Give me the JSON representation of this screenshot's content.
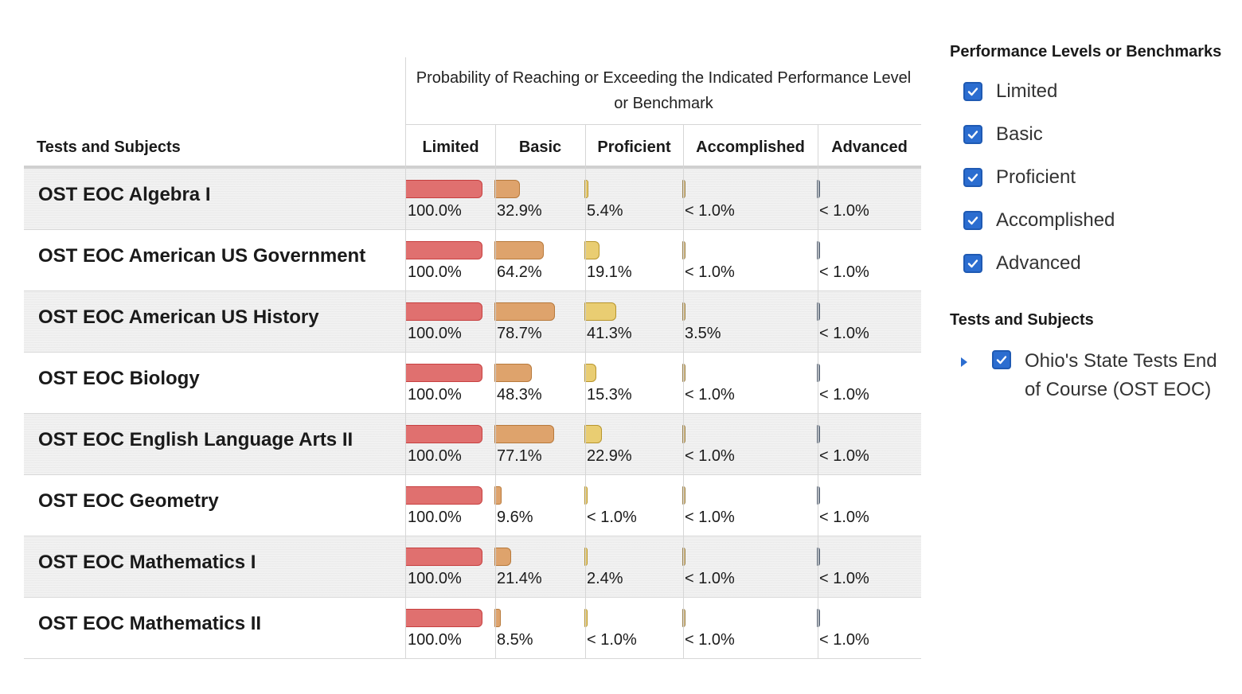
{
  "header": {
    "subjects_label": "Tests and Subjects",
    "probability_label": "Probability of Reaching or Exceeding the Indicated Performance Level or Benchmark",
    "columns": [
      "Limited",
      "Basic",
      "Proficient",
      "Accomplished",
      "Advanced"
    ]
  },
  "level_colors": {
    "fill": [
      "#e0706f",
      "#dea36c",
      "#e9cd72",
      "#d9c08a",
      "#8f99a6"
    ],
    "stroke": [
      "#c74040",
      "#b87a3c",
      "#b8962e",
      "#9c8451",
      "#5a6676"
    ]
  },
  "rows": [
    {
      "subject": "OST EOC Algebra I",
      "labels": [
        "100.0%",
        "32.9%",
        "5.4%",
        "< 1.0%",
        "< 1.0%"
      ],
      "values": [
        100,
        32.9,
        5.4,
        0.5,
        0.5
      ]
    },
    {
      "subject": "OST EOC American US Government",
      "labels": [
        "100.0%",
        "64.2%",
        "19.1%",
        "< 1.0%",
        "< 1.0%"
      ],
      "values": [
        100,
        64.2,
        19.1,
        0.5,
        0.5
      ]
    },
    {
      "subject": "OST EOC American US History",
      "labels": [
        "100.0%",
        "78.7%",
        "41.3%",
        "3.5%",
        "< 1.0%"
      ],
      "values": [
        100,
        78.7,
        41.3,
        3.5,
        0.5
      ]
    },
    {
      "subject": "OST EOC Biology",
      "labels": [
        "100.0%",
        "48.3%",
        "15.3%",
        "< 1.0%",
        "< 1.0%"
      ],
      "values": [
        100,
        48.3,
        15.3,
        0.5,
        0.5
      ]
    },
    {
      "subject": "OST EOC English Language Arts II",
      "labels": [
        "100.0%",
        "77.1%",
        "22.9%",
        "< 1.0%",
        "< 1.0%"
      ],
      "values": [
        100,
        77.1,
        22.9,
        0.5,
        0.5
      ]
    },
    {
      "subject": "OST EOC Geometry",
      "labels": [
        "100.0%",
        "9.6%",
        "< 1.0%",
        "< 1.0%",
        "< 1.0%"
      ],
      "values": [
        100,
        9.6,
        0.5,
        0.5,
        0.5
      ]
    },
    {
      "subject": "OST EOC Mathematics I",
      "labels": [
        "100.0%",
        "21.4%",
        "2.4%",
        "< 1.0%",
        "< 1.0%"
      ],
      "values": [
        100,
        21.4,
        2.4,
        0.5,
        0.5
      ]
    },
    {
      "subject": "OST EOC Mathematics II",
      "labels": [
        "100.0%",
        "8.5%",
        "< 1.0%",
        "< 1.0%",
        "< 1.0%"
      ],
      "values": [
        100,
        8.5,
        0.5,
        0.5,
        0.5
      ]
    }
  ],
  "legend": {
    "levels_title": "Performance Levels or Benchmarks",
    "levels": [
      {
        "label": "Limited",
        "checked": true
      },
      {
        "label": "Basic",
        "checked": true
      },
      {
        "label": "Proficient",
        "checked": true
      },
      {
        "label": "Accomplished",
        "checked": true
      },
      {
        "label": "Advanced",
        "checked": true
      }
    ],
    "tests_title": "Tests and Subjects",
    "tests": [
      {
        "label": "Ohio's State Tests End of Course (OST EOC)",
        "checked": true,
        "icon": "caret-right-icon"
      }
    ]
  }
}
